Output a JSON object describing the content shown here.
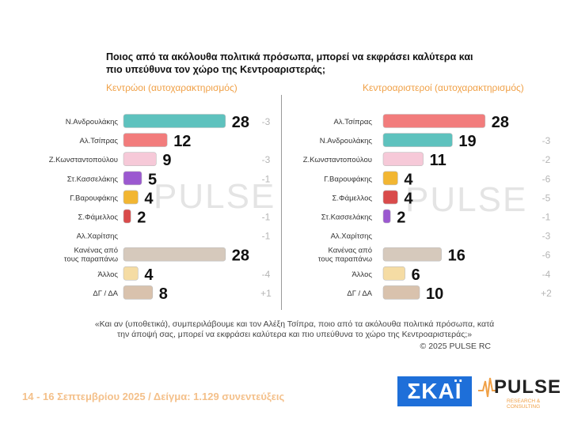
{
  "title": "Ποιος από τα ακόλουθα πολιτικά πρόσωπα, μπορεί να εκφράσει καλύτερα και πιο υπεύθυνα τον χώρο της Κεντροαριστεράς;",
  "note": "«Και αν (υποθετικά), συμπεριλάβουμε και τον Αλέξη Τσίπρα, ποιο από τα ακόλουθα πολιτικά πρόσωπα, κατά την άποψή σας, μπορεί να εκφράσει καλύτερα και πιο υπεύθυνα το χώρο της Κεντροαριστεράς;»",
  "copyright": "© 2025 PULSE RC",
  "footer": "14 - 16 Σεπτεμβρίου 2025  /  Δείγμα:  1.129 συνεντεύξεις",
  "logos": {
    "skai": "ΣΚΑΪ",
    "pulse": "PULSE",
    "pulse_tag": "RESEARCH & CONSULTING"
  },
  "watermark": "PULSE",
  "colors": {
    "subtitle": "#f0a046",
    "footer": "#f4c08a",
    "skai": "#1e6fd9"
  },
  "chart_data": [
    {
      "type": "bar",
      "orientation": "horizontal",
      "title": "Κεντρώοι (αυτοχαρακτηρισμός)",
      "categories": [
        "Ν.Ανδρουλάκης",
        "Αλ.Τσίπρας",
        "Ζ.Κωνσταντοπούλου",
        "Στ.Κασσελάκης",
        "Γ.Βαρουφάκης",
        "Σ.Φάμελλος",
        "Αλ.Χαρίτσης",
        "Κανένας από τους παραπάνω",
        "Άλλος",
        "ΔΓ / ΔΑ"
      ],
      "values": [
        28,
        12,
        9,
        5,
        4,
        2,
        null,
        28,
        4,
        8
      ],
      "changes": [
        "-3",
        "",
        "-3",
        "-1",
        "",
        "-1",
        "-1",
        "",
        "-4",
        "+1"
      ],
      "bar_colors": [
        "#5ec2be",
        "#f27c7c",
        "#f6c9d8",
        "#9b59d0",
        "#f2b632",
        "#d94b4b",
        "#cccccc",
        "#d6c9bc",
        "#f5dca4",
        "#d9c2ad"
      ],
      "xlim": [
        0,
        30
      ]
    },
    {
      "type": "bar",
      "orientation": "horizontal",
      "title": "Κεντροαριστεροί (αυτοχαρακτηρισμός)",
      "categories": [
        "Αλ.Τσίπρας",
        "Ν.Ανδρουλάκης",
        "Ζ.Κωνσταντοπούλου",
        "Γ.Βαρουφάκης",
        "Σ.Φάμελλος",
        "Στ.Κασσελάκης",
        "Αλ.Χαρίτσης",
        "Κανένας από τους παραπάνω",
        "Άλλος",
        "ΔΓ / ΔΑ"
      ],
      "values": [
        28,
        19,
        11,
        4,
        4,
        2,
        null,
        16,
        6,
        10
      ],
      "changes": [
        "",
        "-3",
        "-2",
        "-6",
        "-5",
        "-1",
        "-3",
        "-6",
        "-4",
        "+2"
      ],
      "bar_colors": [
        "#f27c7c",
        "#5ec2be",
        "#f6c9d8",
        "#f2b632",
        "#d94b4b",
        "#9b59d0",
        "#cccccc",
        "#d6c9bc",
        "#f5dca4",
        "#d9c2ad"
      ],
      "xlim": [
        0,
        30
      ]
    }
  ]
}
